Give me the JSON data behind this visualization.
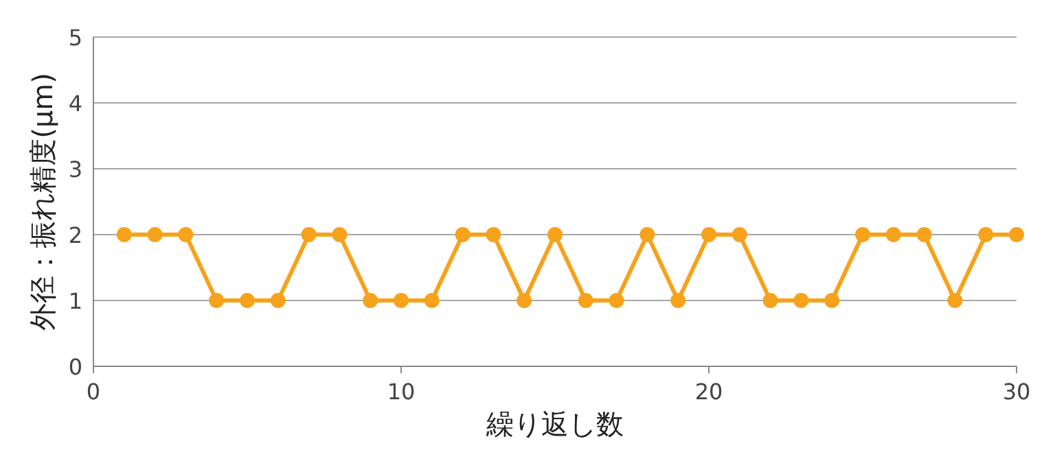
{
  "chart_data": {
    "type": "line",
    "xlabel": "繰り返し数",
    "ylabel": "外径：振れ精度(μm)",
    "x": [
      1,
      2,
      3,
      4,
      5,
      6,
      7,
      8,
      9,
      10,
      11,
      12,
      13,
      14,
      15,
      16,
      17,
      18,
      19,
      20,
      21,
      22,
      23,
      24,
      25,
      26,
      27,
      28,
      29,
      30
    ],
    "series": [
      {
        "color": "#f7a21b",
        "values": [
          2,
          2,
          2,
          1,
          1,
          1,
          2,
          2,
          1,
          1,
          1,
          2,
          2,
          1,
          2,
          1,
          1,
          2,
          1,
          2,
          2,
          1,
          1,
          1,
          2,
          2,
          2,
          1,
          2,
          2
        ]
      }
    ],
    "xlim": [
      0,
      30
    ],
    "xticks": [
      0,
      10,
      20,
      30
    ],
    "ylim": [
      0,
      5
    ],
    "yticks": [
      0,
      1,
      2,
      3,
      4,
      5
    ],
    "grid": "y",
    "marker": "circle",
    "line_style": "solid"
  }
}
